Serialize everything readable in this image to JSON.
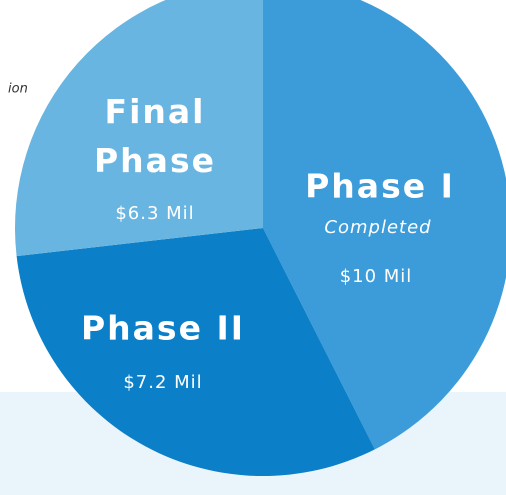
{
  "chart_data": {
    "type": "pie",
    "categories": [
      "Phase I",
      "Phase II",
      "Final Phase"
    ],
    "values": [
      10,
      7.2,
      6.3
    ],
    "value_labels": [
      "$10 Mil",
      "$7.2 Mil",
      "$6.3 Mil"
    ],
    "colors": [
      "#3b9cd9",
      "#0b7fc7",
      "#69b5e1"
    ],
    "annotations": [
      "Completed"
    ],
    "note": "ion"
  }
}
